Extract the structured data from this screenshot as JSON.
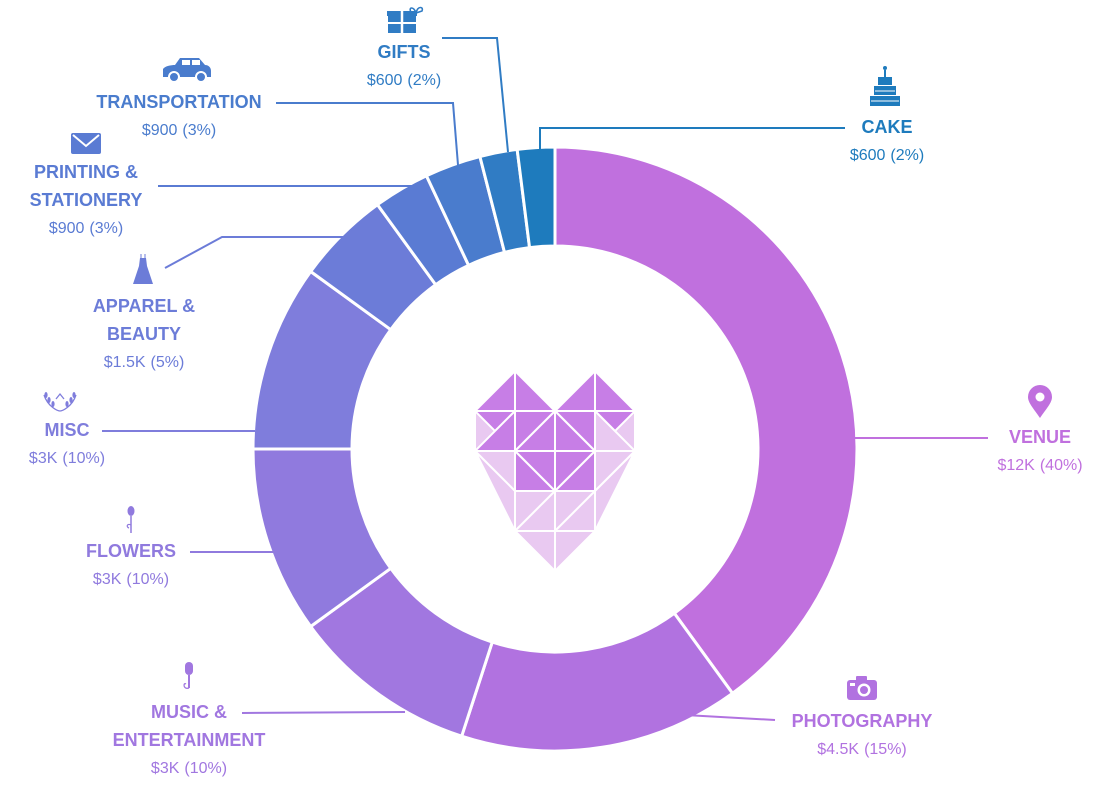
{
  "chart_data": {
    "type": "donut",
    "title": "",
    "unit": "USD",
    "total": 30000,
    "series": [
      {
        "category": "VENUE",
        "value": 12000,
        "value_label": "$12K",
        "percent_label": "(40%)",
        "color": "#c070de",
        "icon": "map-pin-icon"
      },
      {
        "category": "PHOTOGRAPHY",
        "value": 4500,
        "value_label": "$4.5K",
        "percent_label": "(15%)",
        "color": "#b172e0",
        "icon": "camera-icon"
      },
      {
        "category": "MUSIC & ENTERTAINMENT",
        "lines": [
          "MUSIC &",
          "ENTERTAINMENT"
        ],
        "value": 3000,
        "value_label": "$3K",
        "percent_label": "(10%)",
        "color": "#a177e0",
        "icon": "microphone-icon"
      },
      {
        "category": "FLOWERS",
        "value": 3000,
        "value_label": "$3K",
        "percent_label": "(10%)",
        "color": "#907ade",
        "icon": "flower-icon"
      },
      {
        "category": "MISC",
        "value": 3000,
        "value_label": "$3K",
        "percent_label": "(10%)",
        "color": "#7f7ddc",
        "icon": "laurel-icon"
      },
      {
        "category": "APPAREL & BEAUTY",
        "lines": [
          "APPAREL &",
          "BEAUTY"
        ],
        "value": 1500,
        "value_label": "$1.5K",
        "percent_label": "(5%)",
        "color": "#6c7cd8",
        "icon": "dress-icon"
      },
      {
        "category": "PRINTING & STATIONERY",
        "lines": [
          "PRINTING &",
          "STATIONERY"
        ],
        "value": 900,
        "value_label": "$900",
        "percent_label": "(3%)",
        "color": "#5a7bd3",
        "icon": "envelope-icon"
      },
      {
        "category": "TRANSPORTATION",
        "value": 900,
        "value_label": "$900",
        "percent_label": "(3%)",
        "color": "#4a7ccd",
        "icon": "car-icon"
      },
      {
        "category": "GIFTS",
        "value": 600,
        "value_label": "$600",
        "percent_label": "(2%)",
        "color": "#307cc4",
        "icon": "gift-icon"
      },
      {
        "category": "CAKE",
        "value": 600,
        "value_label": "$600",
        "percent_label": "(2%)",
        "color": "#1e7bbd",
        "icon": "cake-icon"
      }
    ],
    "center_icon": "heart-icon",
    "center_colors": {
      "dark": "#c77ee6",
      "light": "#e9c9f1"
    }
  }
}
